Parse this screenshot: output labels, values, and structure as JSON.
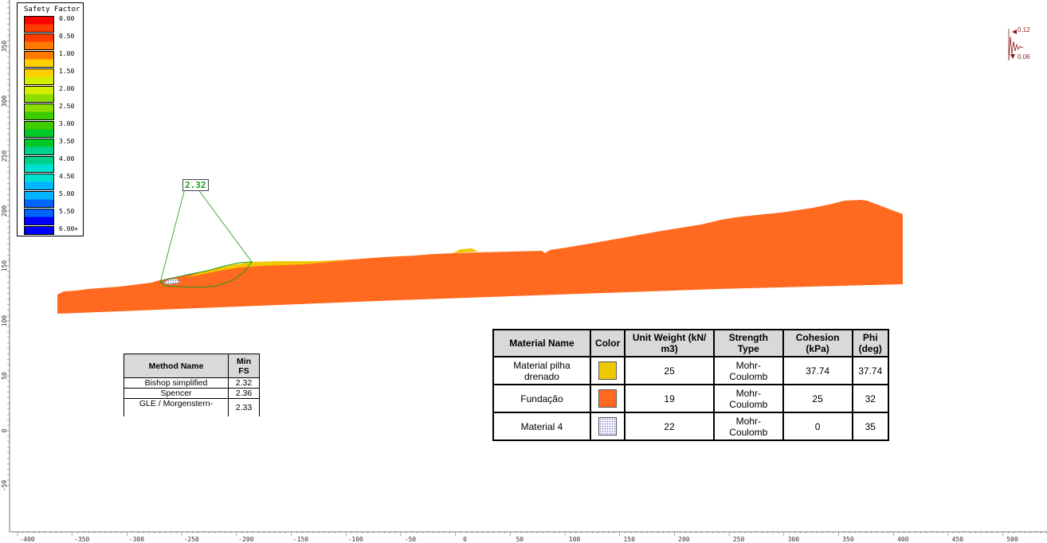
{
  "legend": {
    "title": "Safety Factor",
    "entries": [
      {
        "label": "0.00",
        "color": "#ff0000"
      },
      {
        "label": "0.50",
        "color": "#ff3c00"
      },
      {
        "label": "1.00",
        "color": "#ff7800"
      },
      {
        "label": "1.50",
        "color": "#ffd000"
      },
      {
        "label": "2.00",
        "color": "#d4ee00"
      },
      {
        "label": "2.50",
        "color": "#8cdc00"
      },
      {
        "label": "3.00",
        "color": "#3ccc00"
      },
      {
        "label": "3.50",
        "color": "#00c828"
      },
      {
        "label": "4.00",
        "color": "#00d08c"
      },
      {
        "label": "4.50",
        "color": "#00e0d0"
      },
      {
        "label": "5.00",
        "color": "#00b4ff"
      },
      {
        "label": "5.50",
        "color": "#0064ff"
      },
      {
        "label": "6.00+",
        "color": "#0000ff"
      }
    ]
  },
  "critical_surface": {
    "fs_label": "2.32"
  },
  "seismic": {
    "horizontal": "0.12",
    "vertical": "0.06"
  },
  "x_axis_ticks": [
    "-400",
    "-350",
    "-300",
    "-250",
    "-200",
    "-150",
    "-100",
    "-50",
    "0",
    "50",
    "100",
    "150",
    "200",
    "250",
    "300",
    "350",
    "400",
    "450",
    "500"
  ],
  "y_axis_ticks": [
    "350",
    "300",
    "250",
    "200",
    "150",
    "100",
    "50",
    "0",
    "-50"
  ],
  "method_table": {
    "headers": [
      "Method Name",
      "Min FS"
    ],
    "rows": [
      {
        "method": "Bishop simplified",
        "fs": "2.32"
      },
      {
        "method": "Spencer",
        "fs": "2.36"
      },
      {
        "method": "GLE / Morgenstern-",
        "fs": "2.33"
      }
    ]
  },
  "material_table": {
    "headers": [
      "Material Name",
      "Color",
      "Unit Weight (kN/ m3)",
      "Strength Type",
      "Cohesion (kPa)",
      "Phi (deg)"
    ],
    "rows": [
      {
        "name": "Material pilha drenado",
        "color": "#f0c800",
        "unit_weight": "25",
        "strength_type": "Mohr-Coulomb",
        "cohesion": "37.74",
        "phi": "37.74"
      },
      {
        "name": "Fundação",
        "color": "#ff6a20",
        "unit_weight": "19",
        "strength_type": "Mohr-Coulomb",
        "cohesion": "25",
        "phi": "32"
      },
      {
        "name": "Material 4",
        "color": "dotted",
        "unit_weight": "22",
        "strength_type": "Mohr-Coulomb",
        "cohesion": "0",
        "phi": "35"
      }
    ]
  }
}
